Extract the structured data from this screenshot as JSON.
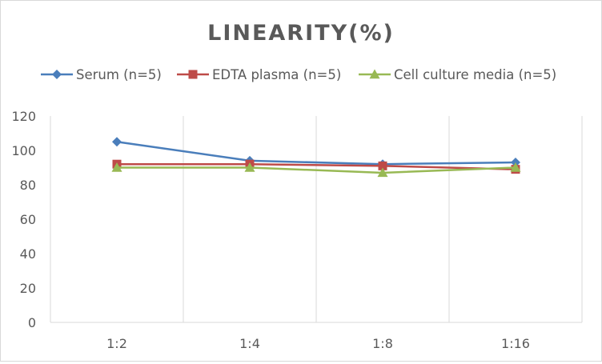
{
  "chart_data": {
    "type": "line",
    "title": "LINEARITY(%)",
    "xlabel": "",
    "ylabel": "",
    "categories": [
      "1:2",
      "1:4",
      "1:8",
      "1:16"
    ],
    "ylim": [
      0,
      120
    ],
    "yticks": [
      0,
      20,
      40,
      60,
      80,
      100,
      120
    ],
    "grid": "vertical",
    "legend_position": "top",
    "series": [
      {
        "name": "Serum (n=5)",
        "values": [
          105,
          94,
          92,
          93
        ],
        "color": "#4a7ebb",
        "marker": "diamond"
      },
      {
        "name": "EDTA plasma (n=5)",
        "values": [
          92,
          92,
          91,
          89
        ],
        "color": "#be4b48",
        "marker": "square"
      },
      {
        "name": "Cell culture media (n=5)",
        "values": [
          90,
          90,
          87,
          90
        ],
        "color": "#98b954",
        "marker": "triangle"
      }
    ]
  }
}
